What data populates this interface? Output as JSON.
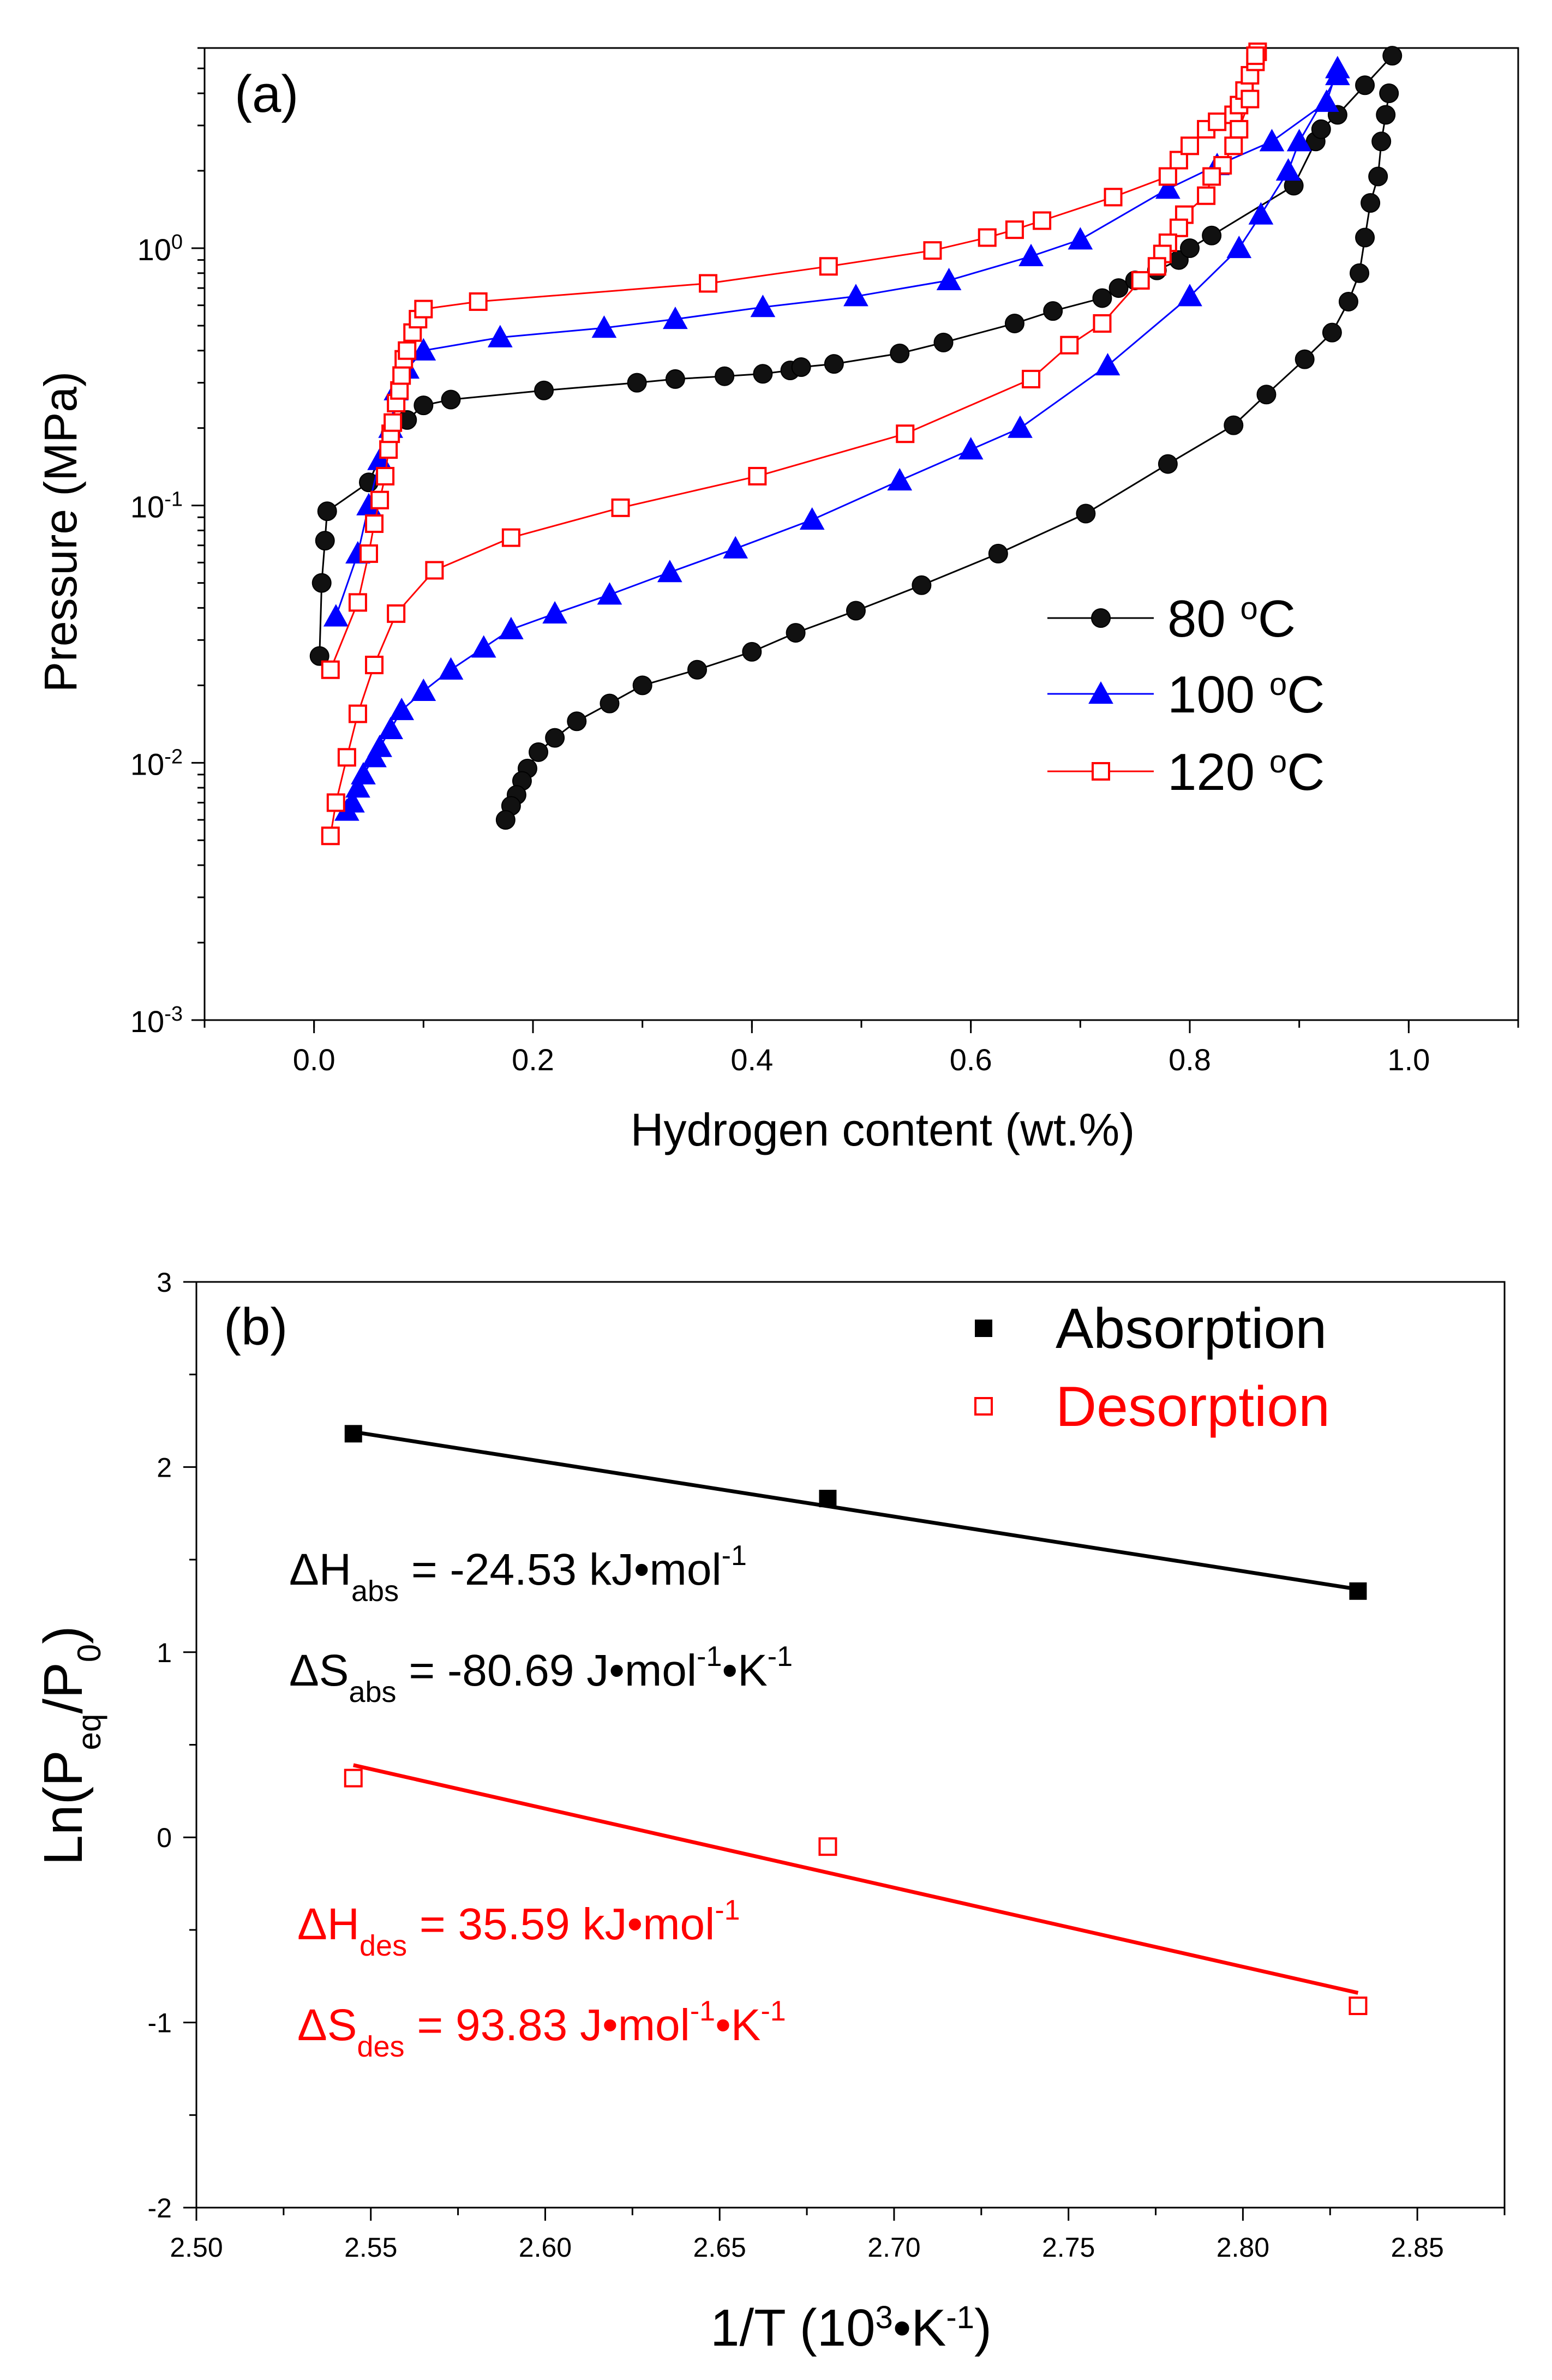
{
  "chart_data": [
    {
      "type": "scatter",
      "panel_label": "(a)",
      "xlabel": "Hydrogen content (wt.%)",
      "ylabel": "Pressure (MPa)",
      "xlim": [
        -0.1,
        1.1
      ],
      "ylim": [
        0.001,
        6
      ],
      "y_scale": "log",
      "x_ticks": [
        "0.0",
        "0.2",
        "0.4",
        "0.6",
        "0.8",
        "1.0"
      ],
      "y_ticks": [
        {
          "value": 0.001,
          "base": "10",
          "exp": "-3"
        },
        {
          "value": 0.01,
          "base": "10",
          "exp": "-2"
        },
        {
          "value": 0.1,
          "base": "10",
          "exp": "-1"
        },
        {
          "value": 1,
          "base": "10",
          "exp": "0"
        }
      ],
      "grid": false,
      "legend_position": "right",
      "series": [
        {
          "name": "80 °C",
          "legend_base": "80 ",
          "legend_sup": "o",
          "legend_unit": "C",
          "marker": "circle",
          "color": "#000000",
          "line_color": "#000000",
          "absorption": [
            [
              0.005,
              0.026
            ],
            [
              0.007,
              0.05
            ],
            [
              0.01,
              0.073
            ],
            [
              0.012,
              0.095
            ],
            [
              0.05,
              0.123
            ],
            [
              0.07,
              0.19
            ],
            [
              0.085,
              0.215
            ],
            [
              0.1,
              0.245
            ],
            [
              0.125,
              0.258
            ],
            [
              0.21,
              0.28
            ],
            [
              0.295,
              0.3
            ],
            [
              0.33,
              0.31
            ],
            [
              0.375,
              0.318
            ],
            [
              0.41,
              0.325
            ],
            [
              0.435,
              0.335
            ],
            [
              0.445,
              0.345
            ],
            [
              0.475,
              0.355
            ],
            [
              0.535,
              0.39
            ],
            [
              0.575,
              0.43
            ],
            [
              0.64,
              0.51
            ],
            [
              0.675,
              0.57
            ],
            [
              0.72,
              0.64
            ],
            [
              0.735,
              0.7
            ],
            [
              0.75,
              0.75
            ],
            [
              0.77,
              0.82
            ],
            [
              0.79,
              0.9
            ],
            [
              0.8,
              1.0
            ],
            [
              0.82,
              1.12
            ],
            [
              0.895,
              1.75
            ],
            [
              0.915,
              2.6
            ],
            [
              0.92,
              2.9
            ],
            [
              0.935,
              3.3
            ],
            [
              0.96,
              4.3
            ],
            [
              0.985,
              5.6
            ]
          ],
          "desorption": [
            [
              0.982,
              4.0
            ],
            [
              0.979,
              3.3
            ],
            [
              0.975,
              2.6
            ],
            [
              0.972,
              1.9
            ],
            [
              0.965,
              1.5
            ],
            [
              0.96,
              1.1
            ],
            [
              0.955,
              0.8
            ],
            [
              0.945,
              0.62
            ],
            [
              0.93,
              0.47
            ],
            [
              0.905,
              0.37
            ],
            [
              0.87,
              0.27
            ],
            [
              0.84,
              0.205
            ],
            [
              0.78,
              0.145
            ],
            [
              0.705,
              0.093
            ],
            [
              0.625,
              0.065
            ],
            [
              0.555,
              0.049
            ],
            [
              0.495,
              0.039
            ],
            [
              0.44,
              0.032
            ],
            [
              0.4,
              0.027
            ],
            [
              0.35,
              0.023
            ],
            [
              0.3,
              0.02
            ],
            [
              0.27,
              0.017
            ],
            [
              0.24,
              0.0145
            ],
            [
              0.22,
              0.0125
            ],
            [
              0.205,
              0.011
            ],
            [
              0.195,
              0.0095
            ],
            [
              0.19,
              0.0085
            ],
            [
              0.185,
              0.0075
            ],
            [
              0.18,
              0.0068
            ],
            [
              0.175,
              0.006
            ]
          ]
        },
        {
          "name": "100 °C",
          "legend_base": "100 ",
          "legend_sup": "o",
          "legend_unit": "C",
          "marker": "triangle",
          "color": "#0000ff",
          "line_color": "#0000ff",
          "absorption": [
            [
              0.02,
              0.037
            ],
            [
              0.04,
              0.065
            ],
            [
              0.05,
              0.1
            ],
            [
              0.06,
              0.15
            ],
            [
              0.07,
              0.2
            ],
            [
              0.075,
              0.28
            ],
            [
              0.085,
              0.34
            ],
            [
              0.1,
              0.4
            ],
            [
              0.17,
              0.45
            ],
            [
              0.265,
              0.49
            ],
            [
              0.33,
              0.53
            ],
            [
              0.41,
              0.59
            ],
            [
              0.495,
              0.65
            ],
            [
              0.58,
              0.75
            ],
            [
              0.655,
              0.93
            ],
            [
              0.7,
              1.08
            ],
            [
              0.78,
              1.7
            ],
            [
              0.825,
              2.1
            ],
            [
              0.875,
              2.6
            ],
            [
              0.925,
              3.7
            ],
            [
              0.935,
              5.0
            ]
          ],
          "desorption": [
            [
              0.935,
              4.7
            ],
            [
              0.9,
              2.6
            ],
            [
              0.89,
              2.0
            ],
            [
              0.865,
              1.35
            ],
            [
              0.845,
              1.0
            ],
            [
              0.8,
              0.65
            ],
            [
              0.725,
              0.35
            ],
            [
              0.645,
              0.2
            ],
            [
              0.6,
              0.165
            ],
            [
              0.535,
              0.125
            ],
            [
              0.455,
              0.088
            ],
            [
              0.385,
              0.068
            ],
            [
              0.325,
              0.055
            ],
            [
              0.27,
              0.045
            ],
            [
              0.22,
              0.038
            ],
            [
              0.18,
              0.033
            ],
            [
              0.155,
              0.028
            ],
            [
              0.125,
              0.023
            ],
            [
              0.1,
              0.019
            ],
            [
              0.08,
              0.016
            ],
            [
              0.07,
              0.0135
            ],
            [
              0.06,
              0.0115
            ],
            [
              0.055,
              0.0105
            ],
            [
              0.045,
              0.009
            ],
            [
              0.04,
              0.008
            ],
            [
              0.035,
              0.007
            ],
            [
              0.03,
              0.0065
            ]
          ]
        },
        {
          "name": "120 °C",
          "legend_base": "120 ",
          "legend_sup": "o",
          "legend_unit": "C",
          "marker": "square-open",
          "color": "#ff0000",
          "line_color": "#ff0000",
          "absorption": [
            [
              0.015,
              0.023
            ],
            [
              0.04,
              0.042
            ],
            [
              0.05,
              0.065
            ],
            [
              0.055,
              0.085
            ],
            [
              0.06,
              0.105
            ],
            [
              0.065,
              0.13
            ],
            [
              0.068,
              0.165
            ],
            [
              0.07,
              0.19
            ],
            [
              0.072,
              0.21
            ],
            [
              0.075,
              0.25
            ],
            [
              0.078,
              0.28
            ],
            [
              0.08,
              0.32
            ],
            [
              0.082,
              0.37
            ],
            [
              0.085,
              0.4
            ],
            [
              0.09,
              0.47
            ],
            [
              0.095,
              0.53
            ],
            [
              0.1,
              0.58
            ],
            [
              0.15,
              0.62
            ],
            [
              0.36,
              0.73
            ],
            [
              0.47,
              0.85
            ],
            [
              0.565,
              0.98
            ],
            [
              0.615,
              1.1
            ],
            [
              0.64,
              1.18
            ],
            [
              0.665,
              1.28
            ],
            [
              0.73,
              1.58
            ],
            [
              0.78,
              1.9
            ],
            [
              0.79,
              2.2
            ],
            [
              0.8,
              2.5
            ],
            [
              0.815,
              2.9
            ],
            [
              0.825,
              3.1
            ],
            [
              0.84,
              3.3
            ],
            [
              0.845,
              3.6
            ],
            [
              0.85,
              4.1
            ],
            [
              0.855,
              4.7
            ],
            [
              0.86,
              5.3
            ],
            [
              0.862,
              5.8
            ]
          ],
          "desorption": [
            [
              0.86,
              5.6
            ],
            [
              0.855,
              3.8
            ],
            [
              0.845,
              2.9
            ],
            [
              0.84,
              2.5
            ],
            [
              0.83,
              2.1
            ],
            [
              0.82,
              1.9
            ],
            [
              0.815,
              1.6
            ],
            [
              0.795,
              1.35
            ],
            [
              0.79,
              1.2
            ],
            [
              0.78,
              1.05
            ],
            [
              0.775,
              0.95
            ],
            [
              0.77,
              0.85
            ],
            [
              0.755,
              0.75
            ],
            [
              0.72,
              0.51
            ],
            [
              0.69,
              0.42
            ],
            [
              0.655,
              0.31
            ],
            [
              0.54,
              0.19
            ],
            [
              0.405,
              0.13
            ],
            [
              0.28,
              0.098
            ],
            [
              0.18,
              0.075
            ],
            [
              0.11,
              0.056
            ],
            [
              0.075,
              0.038
            ],
            [
              0.055,
              0.024
            ],
            [
              0.04,
              0.0155
            ],
            [
              0.03,
              0.0105
            ],
            [
              0.02,
              0.007
            ],
            [
              0.015,
              0.0052
            ]
          ]
        }
      ]
    },
    {
      "type": "scatter",
      "panel_label": "(b)",
      "xlabel_base": "1/T (10",
      "xlabel_sup1": "3",
      "xlabel_mid": "•K",
      "xlabel_sup2": "-1",
      "xlabel_end": ")",
      "ylabel_base": "Ln(P",
      "ylabel_sub1": "eq",
      "ylabel_mid": "/P",
      "ylabel_sub2": "0",
      "ylabel_end": ")",
      "xlim": [
        2.5,
        2.875
      ],
      "ylim": [
        -2,
        3
      ],
      "x_ticks": [
        "2.50",
        "2.55",
        "2.60",
        "2.65",
        "2.70",
        "2.75",
        "2.80",
        "2.85"
      ],
      "y_ticks": [
        "-2",
        "-1",
        "0",
        "1",
        "2",
        "3"
      ],
      "grid": false,
      "legend_position": "top-right",
      "series": [
        {
          "name": "Absorption",
          "marker": "square-filled",
          "color": "#000000",
          "x": [
            2.545,
            2.681,
            2.833
          ],
          "y": [
            2.18,
            1.83,
            1.33
          ],
          "fit": {
            "x": [
              2.545,
              2.833
            ],
            "y": [
              2.19,
              1.34
            ]
          }
        },
        {
          "name": "Desorption",
          "marker": "square-open",
          "color": "#ff0000",
          "x": [
            2.545,
            2.681,
            2.833
          ],
          "y": [
            0.32,
            -0.05,
            -0.91
          ],
          "fit": {
            "x": [
              2.545,
              2.833
            ],
            "y": [
              0.39,
              -0.84
            ]
          }
        }
      ],
      "annotations": [
        {
          "sym": "ΔH",
          "sub": "abs",
          "value": " = -24.53 kJ•mol",
          "sup": "-1",
          "tail": "",
          "color": "#000000"
        },
        {
          "sym": "ΔS",
          "sub": "abs",
          "value": " = -80.69 J•mol",
          "sup": "-1",
          "tail": "•K",
          "sup2": "-1",
          "color": "#000000"
        },
        {
          "sym": "ΔH",
          "sub": "des",
          "value": " = 35.59 kJ•mol",
          "sup": "-1",
          "tail": "",
          "color": "#ff0000"
        },
        {
          "sym": "ΔS",
          "sub": "des",
          "value": " = 93.83 J•mol",
          "sup": "-1",
          "tail": "•K",
          "sup2": "-1",
          "color": "#ff0000"
        }
      ]
    }
  ]
}
